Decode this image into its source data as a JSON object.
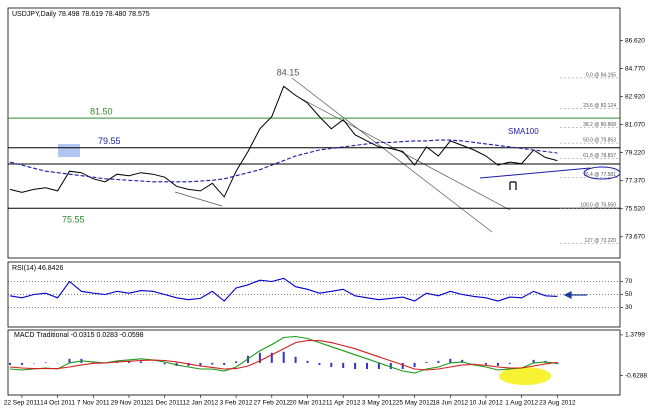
{
  "chart_data": [
    {
      "type": "line",
      "title": "USDJPY,Daily 78.498 78.619 78.480 78.575",
      "categories": [
        null,
        "22 Sep 2011",
        null,
        null,
        "14 Oct 2011",
        null,
        null,
        "7 Nov 2011",
        null,
        null,
        "29 Nov 2011",
        null,
        null,
        "21 Dec 2011",
        null,
        null,
        "12 Jan 2012",
        null,
        null,
        "3 Feb 2012",
        null,
        null,
        "27 Feb 2012",
        null,
        null,
        "20 Mar 2012",
        null,
        null,
        "11 Apr 2012",
        null,
        null,
        "3 May 2012",
        null,
        null,
        "25 May 2012",
        null,
        null,
        "18 Jun 2012",
        null,
        null,
        "10 Jul 2012",
        null,
        null,
        "1 Aug 2012",
        null,
        null,
        "23 Aug 2012"
      ],
      "series": [
        {
          "color": "#000000",
          "values": [
            76.8,
            76.6,
            76.8,
            76.9,
            76.7,
            78.0,
            77.9,
            77.5,
            77.3,
            77.8,
            77.7,
            77.9,
            77.8,
            77.6,
            77.0,
            76.8,
            76.7,
            77.2,
            76.3,
            78.0,
            79.3,
            80.8,
            81.6,
            83.6,
            83.0,
            82.5,
            81.6,
            80.8,
            81.4,
            80.4,
            80.0,
            79.6,
            79.5,
            79.3,
            78.4,
            79.6,
            79.0,
            80.0,
            79.7,
            79.4,
            79.0,
            78.4,
            78.6,
            78.5,
            79.4,
            78.9,
            78.7
          ]
        },
        {
          "name": "SMA100",
          "color": "#1a1aa6",
          "dash": true,
          "values": [
            78.6,
            78.4,
            78.2,
            78.0,
            77.9,
            77.8,
            77.7,
            77.6,
            77.5,
            77.45,
            77.4,
            77.35,
            77.3,
            77.3,
            77.3,
            77.3,
            77.35,
            77.4,
            77.5,
            77.7,
            77.9,
            78.1,
            78.4,
            78.7,
            79.0,
            79.2,
            79.4,
            79.5,
            79.6,
            79.7,
            79.8,
            79.9,
            79.9,
            79.95,
            80.0,
            80.0,
            80.05,
            80.05,
            80.0,
            79.9,
            79.8,
            79.7,
            79.6,
            79.5,
            79.4,
            79.3,
            79.2
          ]
        }
      ],
      "levels": [
        {
          "value": 81.5,
          "label": "81.50",
          "color": "#2e8b2e"
        },
        {
          "value": 79.55,
          "color": "#000000"
        },
        {
          "value": 78.47,
          "color": "#000000"
        },
        {
          "value": 75.55,
          "color": "#000000"
        }
      ],
      "annotations": [
        "84.15"
      ],
      "fib_labels": [
        {
          "value": 84.155,
          "label": "0.0 @ 84.155"
        },
        {
          "value": 82.124,
          "label": "23.6 @ 82.124"
        },
        {
          "value": 80.868,
          "label": "38.2 @ 80.868"
        },
        {
          "value": 79.853,
          "label": "50.0 @ 79.853"
        },
        {
          "value": 78.837,
          "label": "61.8 @ 78.837"
        },
        {
          "value": 77.581,
          "label": "76.4 @ 77.581"
        },
        {
          "value": 75.55,
          "label": "100.0 @ 75.550"
        },
        {
          "value": 73.22,
          "label": "127 @ 73.220"
        }
      ],
      "ylim": [
        72.27,
        88.77
      ],
      "yticks": [
        {
          "value": 73.67,
          "label": "73.670"
        },
        {
          "value": 75.52,
          "label": "75.520"
        },
        {
          "value": 77.37,
          "label": "77.370"
        },
        {
          "value": 79.22,
          "label": "79.220"
        },
        {
          "value": 81.07,
          "label": "81.070"
        },
        {
          "value": 82.92,
          "label": "82.920"
        },
        {
          "value": 84.77,
          "label": "84.770"
        },
        {
          "value": 86.62,
          "label": "86.620"
        }
      ]
    },
    {
      "type": "line",
      "title": "RSI(14) 46.8426",
      "series": [
        {
          "color": "#0000cc",
          "values": [
            48,
            45,
            50,
            52,
            45,
            70,
            55,
            52,
            50,
            55,
            52,
            56,
            55,
            50,
            45,
            42,
            44,
            55,
            40,
            60,
            65,
            72,
            70,
            75,
            62,
            58,
            52,
            55,
            58,
            48,
            45,
            42,
            44,
            46,
            40,
            52,
            48,
            55,
            50,
            47,
            45,
            40,
            46,
            45,
            55,
            48,
            47
          ]
        }
      ],
      "ylim": [
        0,
        100
      ],
      "yticks": [
        30,
        50,
        70
      ]
    },
    {
      "type": "bar",
      "title": "MACD Traditional -0.0315 0.0283 -0.0598",
      "color": "#3333cc",
      "values": [
        -0.1,
        -0.1,
        -0.02,
        0.03,
        -0.02,
        0.2,
        0.2,
        0.07,
        0,
        0.05,
        0.07,
        0.08,
        0.01,
        -0.07,
        -0.15,
        -0.15,
        -0.15,
        -0.08,
        -0.1,
        0.08,
        0.35,
        0.5,
        0.5,
        0.55,
        0.3,
        0.1,
        -0.1,
        -0.2,
        -0.25,
        -0.3,
        -0.3,
        -0.3,
        -0.3,
        -0.3,
        -0.2,
        0.05,
        0.1,
        0.2,
        0.15,
        -0.02,
        -0.08,
        -0.15,
        -0.05,
        0,
        0.15,
        0.1,
        -0.06
      ],
      "series": [
        {
          "color": "#1a9a1a",
          "values": [
            -0.3,
            -0.35,
            -0.3,
            -0.25,
            -0.3,
            0.0,
            0.1,
            0.05,
            0.0,
            0.1,
            0.15,
            0.2,
            0.15,
            0.05,
            -0.1,
            -0.2,
            -0.3,
            -0.3,
            -0.4,
            -0.2,
            0.2,
            0.6,
            0.9,
            1.25,
            1.3,
            1.2,
            1.0,
            0.8,
            0.6,
            0.4,
            0.2,
            0.0,
            -0.2,
            -0.4,
            -0.5,
            -0.3,
            -0.2,
            0.0,
            0.05,
            -0.1,
            -0.2,
            -0.35,
            -0.3,
            -0.25,
            0.0,
            0.05,
            -0.03
          ]
        },
        {
          "color": "#d42020",
          "values": [
            -0.2,
            -0.25,
            -0.28,
            -0.28,
            -0.28,
            -0.2,
            -0.1,
            -0.02,
            0.0,
            0.05,
            0.08,
            0.12,
            0.14,
            0.12,
            0.05,
            -0.05,
            -0.15,
            -0.22,
            -0.3,
            -0.28,
            -0.15,
            0.1,
            0.4,
            0.7,
            1.0,
            1.1,
            1.1,
            1.0,
            0.85,
            0.7,
            0.5,
            0.3,
            0.1,
            -0.1,
            -0.3,
            -0.35,
            -0.3,
            -0.2,
            -0.1,
            -0.08,
            -0.12,
            -0.2,
            -0.25,
            -0.25,
            -0.15,
            -0.05,
            0.03
          ]
        }
      ],
      "ylim": [
        -1.58,
        1.62
      ],
      "yticks": [
        -0.6288,
        1.3799
      ]
    }
  ]
}
